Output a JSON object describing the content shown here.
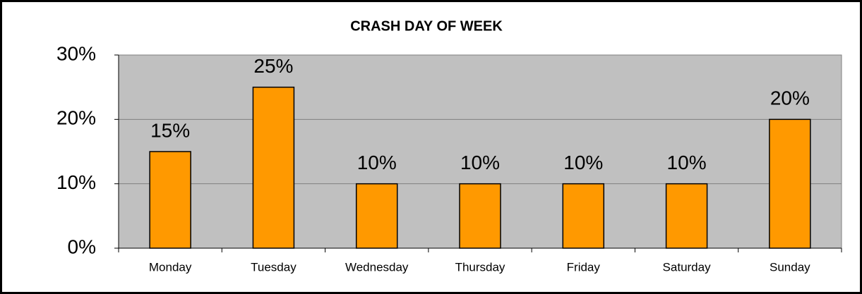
{
  "chart_data": {
    "type": "bar",
    "title": "CRASH DAY OF WEEK",
    "categories": [
      "Monday",
      "Tuesday",
      "Wednesday",
      "Thursday",
      "Friday",
      "Saturday",
      "Sunday"
    ],
    "values": [
      15,
      25,
      10,
      10,
      10,
      10,
      20
    ],
    "value_labels": [
      "15%",
      "25%",
      "10%",
      "10%",
      "10%",
      "10%",
      "20%"
    ],
    "color": "#ff9900",
    "ylim": [
      0,
      30
    ],
    "yticks": [
      {
        "value": 0,
        "label": "0%"
      },
      {
        "value": 10,
        "label": "10%"
      },
      {
        "value": 20,
        "label": "20%"
      },
      {
        "value": 30,
        "label": "30%"
      }
    ],
    "grid": true
  }
}
